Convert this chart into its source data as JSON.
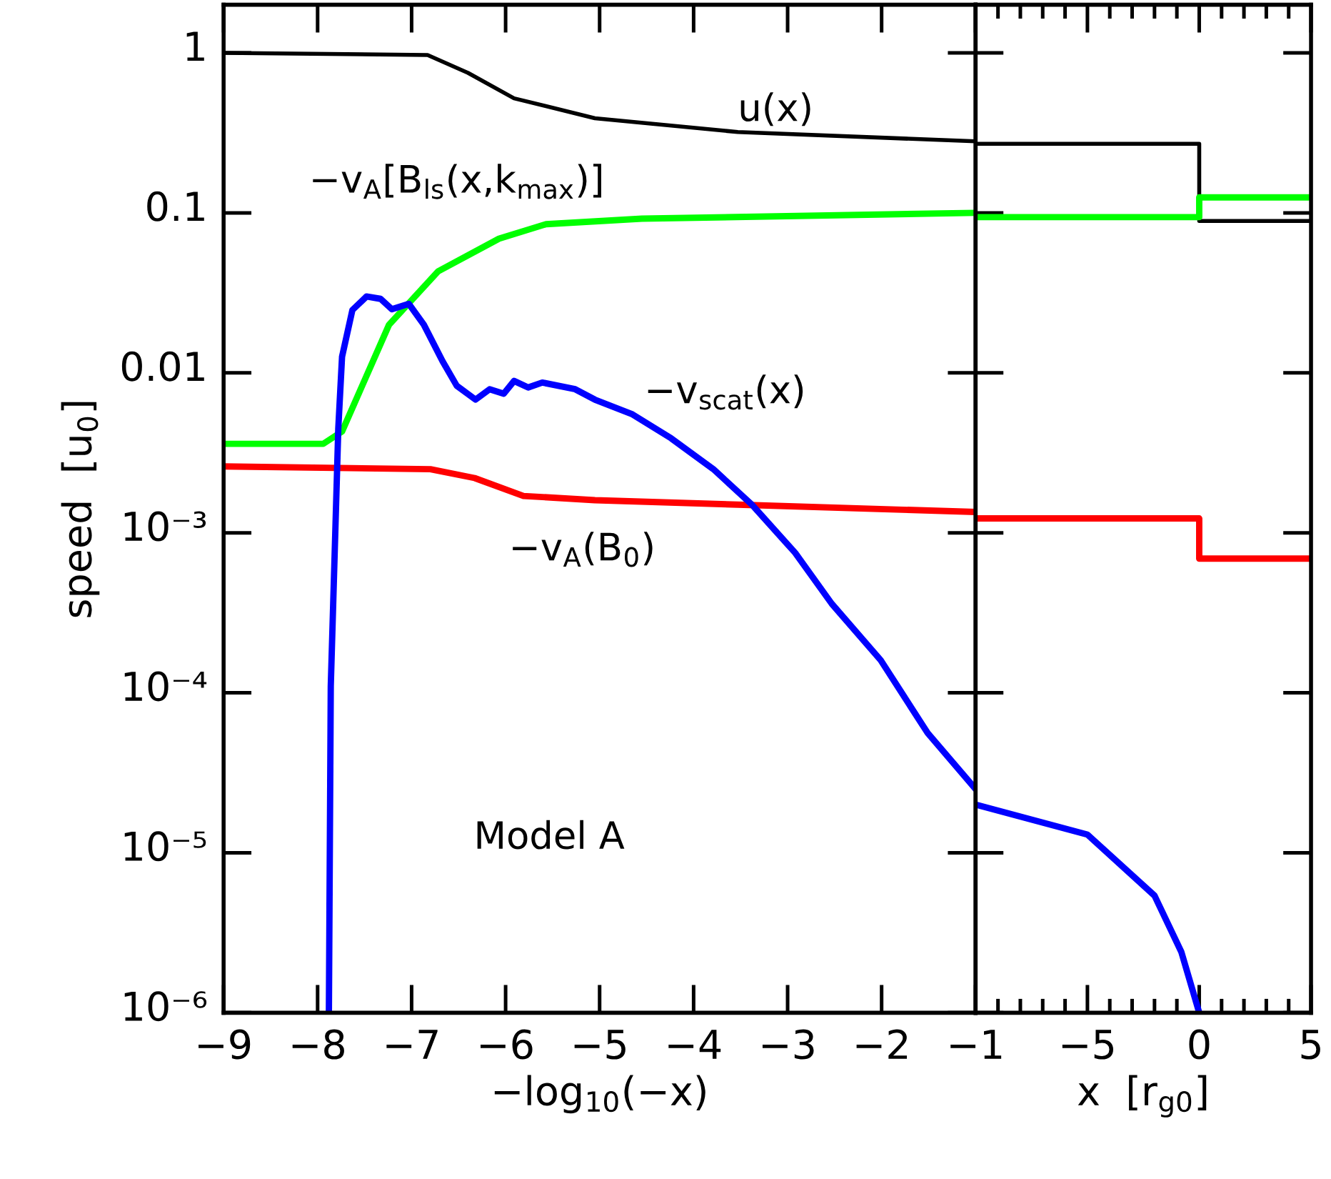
{
  "chart_data": [
    {
      "type": "line",
      "xlabel": "−log$_{10}$(−x)",
      "ylabel": "speed  [u$_{0}$]",
      "log": "y",
      "xlim": [
        -9,
        -1
      ],
      "xticks": [
        -9,
        -8,
        -7,
        -6,
        -5,
        -4,
        -3,
        -2,
        -1
      ],
      "ylim": [
        1e-06,
        2
      ],
      "yticks": [
        {
          "value": 1e-06,
          "label": "10⁻⁶"
        },
        {
          "value": 1e-05,
          "label": "10⁻⁵"
        },
        {
          "value": 0.0001,
          "label": "10⁻⁴"
        },
        {
          "value": 0.001,
          "label": "10⁻³"
        },
        0.01,
        0.1,
        1
      ],
      "grid": false,
      "legend": false,
      "series": [
        {
          "name": "u(x)",
          "color": "#000000",
          "x": [
            -9,
            -6.83,
            -6.4,
            -5.91,
            -5.05,
            -3.53,
            -1
          ],
          "values": [
            1.0,
            0.97,
            0.75,
            0.52,
            0.39,
            0.32,
            0.28
          ]
        },
        {
          "name": "−v$_{A}$[B$_{ls}$(x,k$_{max}$)]",
          "color": "#00ff00",
          "x": [
            -9,
            -7.94,
            -7.74,
            -7.24,
            -6.72,
            -6.07,
            -5.57,
            -4.55,
            -1
          ],
          "values": [
            0.0036,
            0.0036,
            0.0043,
            0.02,
            0.043,
            0.069,
            0.085,
            0.092,
            0.1
          ]
        },
        {
          "name": "−v$_{A}$(B$_{0}$)",
          "color": "#ff0000",
          "x": [
            -9,
            -6.8,
            -6.33,
            -5.81,
            -5.05,
            -3.53,
            -1
          ],
          "values": [
            0.0026,
            0.0025,
            0.0022,
            0.0017,
            0.0016,
            0.0015,
            0.00135
          ]
        },
        {
          "name": "−v$_{scat}$(x)",
          "color": "#0000ff",
          "x": [
            -7.88,
            -7.86,
            -7.81,
            -7.78,
            -7.74,
            -7.63,
            -7.48,
            -7.33,
            -7.21,
            -7.03,
            -6.87,
            -6.67,
            -6.52,
            -6.32,
            -6.17,
            -6.02,
            -5.91,
            -5.76,
            -5.61,
            -5.26,
            -5.05,
            -4.65,
            -4.24,
            -3.79,
            -3.38,
            -2.92,
            -2.53,
            -2.01,
            -1.51,
            -1
          ],
          "values": [
            1e-06,
            0.00011,
            0.0011,
            0.0045,
            0.0126,
            0.0247,
            0.03,
            0.029,
            0.025,
            0.027,
            0.02,
            0.0118,
            0.0083,
            0.0068,
            0.0079,
            0.0074,
            0.0089,
            0.0081,
            0.0087,
            0.0079,
            0.0068,
            0.0055,
            0.0039,
            0.0025,
            0.0015,
            0.00075,
            0.00036,
            0.00016,
            5.6e-05,
            2.5e-05
          ]
        }
      ],
      "annotations": [
        "Model A"
      ]
    },
    {
      "type": "line",
      "xlabel": "x  [r$_{g0}$]",
      "log": "y",
      "tick_labels": "x",
      "xlim": [
        -10,
        5
      ],
      "xticks": [
        {
          "value": -10,
          "label": null
        },
        -5,
        0,
        5
      ],
      "ylim": [
        1e-06,
        2
      ],
      "yticks": [
        1e-06,
        1e-05,
        0.0001,
        0.001,
        0.01,
        0.1,
        1
      ],
      "grid": false,
      "legend": false,
      "series": [
        {
          "color": "#000000",
          "x": [
            -10,
            0,
            0,
            5
          ],
          "values": [
            0.27,
            0.27,
            0.089,
            0.089
          ]
        },
        {
          "color": "#00ff00",
          "x": [
            -10,
            0,
            0,
            5
          ],
          "values": [
            0.094,
            0.094,
            0.125,
            0.125
          ]
        },
        {
          "color": "#ff0000",
          "x": [
            -10,
            0,
            0,
            5
          ],
          "values": [
            0.00123,
            0.00123,
            0.00069,
            0.00069
          ]
        },
        {
          "color": "#0000ff",
          "x": [
            -10,
            -5,
            -2,
            -0.8,
            0
          ],
          "values": [
            2e-05,
            1.3e-05,
            5.4e-06,
            2.4e-06,
            1e-06
          ]
        }
      ]
    }
  ]
}
